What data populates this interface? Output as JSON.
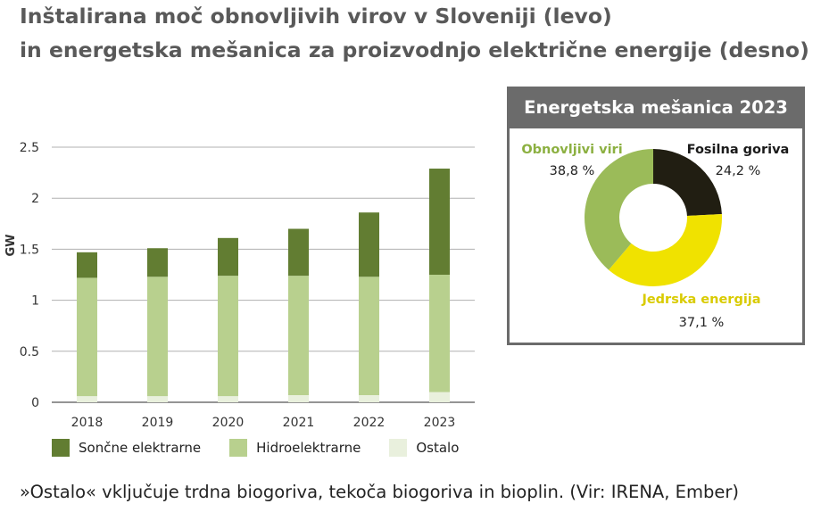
{
  "title": {
    "line1": "Inštalirana moč obnovljivih virov v Sloveniji (levo)",
    "line2": "in energetska mešanica za proizvodnjo električne energije (desno)"
  },
  "colors": {
    "solar": "#627d32",
    "hydro": "#b8d08e",
    "other": "#e9f0dd",
    "renewables": "#9bbb59",
    "fossil": "#211e12",
    "nuclear": "#f0e200",
    "panel": "#6b6b6b"
  },
  "chart_data": [
    {
      "type": "bar",
      "stacked": true,
      "ylabel": "GW",
      "ylim": [
        0,
        2.5
      ],
      "yticks": [
        "0",
        "0.5",
        "1",
        "1.5",
        "2",
        "2.5"
      ],
      "grid": true,
      "categories": [
        "2018",
        "2019",
        "2020",
        "2021",
        "2022",
        "2023"
      ],
      "series": [
        {
          "name": "Ostalo",
          "values": [
            0.06,
            0.06,
            0.06,
            0.07,
            0.07,
            0.1
          ]
        },
        {
          "name": "Hidroelektrarne",
          "values": [
            1.16,
            1.17,
            1.18,
            1.17,
            1.16,
            1.15
          ]
        },
        {
          "name": "Sončne elektrarne",
          "values": [
            0.25,
            0.28,
            0.37,
            0.46,
            0.63,
            1.04
          ]
        }
      ],
      "legend": [
        "Sončne elektrarne",
        "Hidroelektrarne",
        "Ostalo"
      ]
    },
    {
      "type": "pie",
      "donut": true,
      "title": "Energetska mešanica 2023",
      "slices": [
        {
          "label": "Fosilna goriva",
          "value": 24.2,
          "display": "24,2 %"
        },
        {
          "label": "Jedrska energija",
          "value": 37.1,
          "display": "37,1 %"
        },
        {
          "label": "Obnovljivi viri",
          "value": 38.8,
          "display": "38,8 %"
        }
      ]
    }
  ],
  "footnote": "»Ostalo« vključuje trdna biogoriva, tekoča biogoriva in bioplin. (Vir: IRENA, Ember)"
}
